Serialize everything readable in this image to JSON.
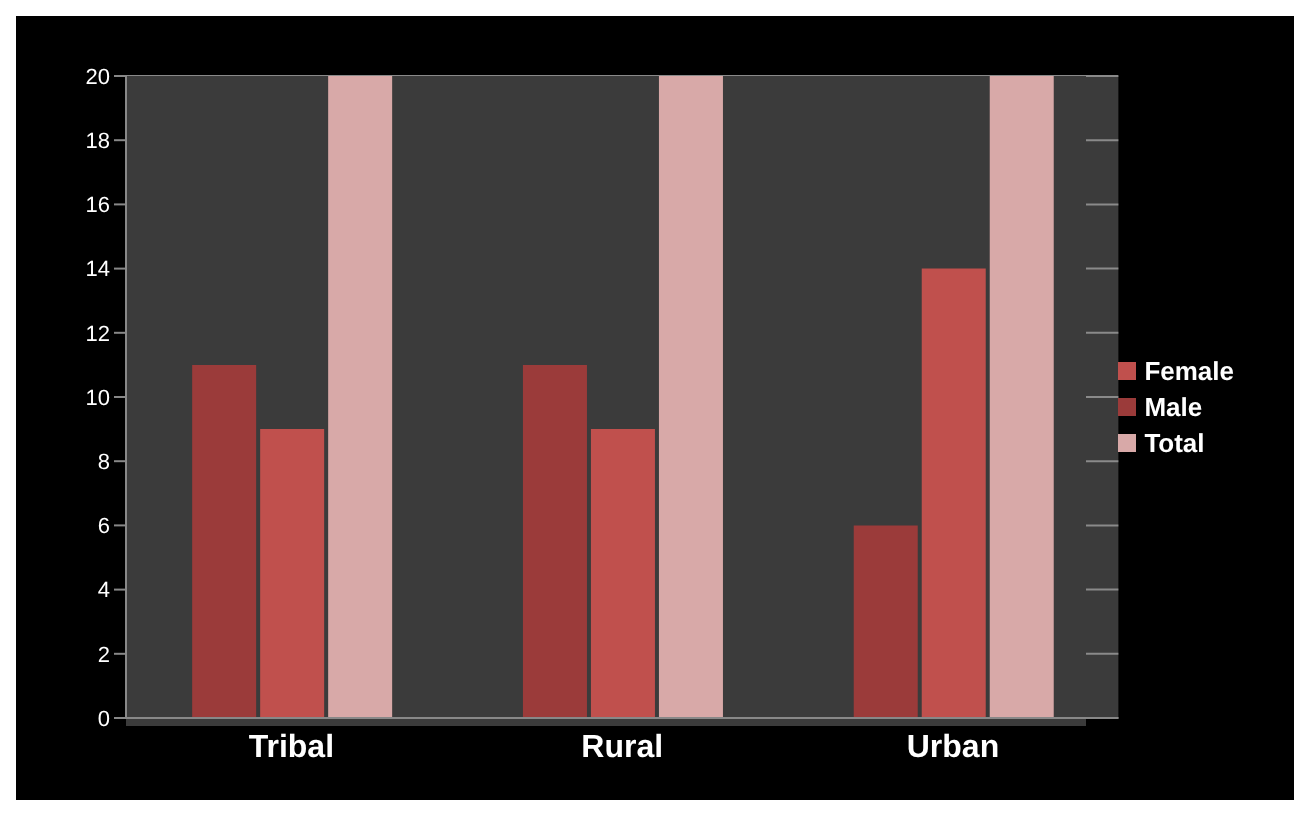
{
  "chart_data": {
    "type": "bar",
    "categories": [
      "Tribal",
      "Rural",
      "Urban"
    ],
    "series": [
      {
        "name": "Male",
        "color": "#9b3b3a",
        "values": [
          11,
          11,
          6
        ]
      },
      {
        "name": "Female",
        "color": "#c0504d",
        "values": [
          9,
          9,
          14
        ]
      },
      {
        "name": "Total",
        "color": "#d8a9a8",
        "values": [
          20,
          20,
          20
        ]
      }
    ],
    "ylim": [
      0,
      20
    ],
    "yticks": [
      0,
      2,
      4,
      6,
      8,
      10,
      12,
      14,
      16,
      18,
      20
    ],
    "grid": "y",
    "legend": "right"
  }
}
